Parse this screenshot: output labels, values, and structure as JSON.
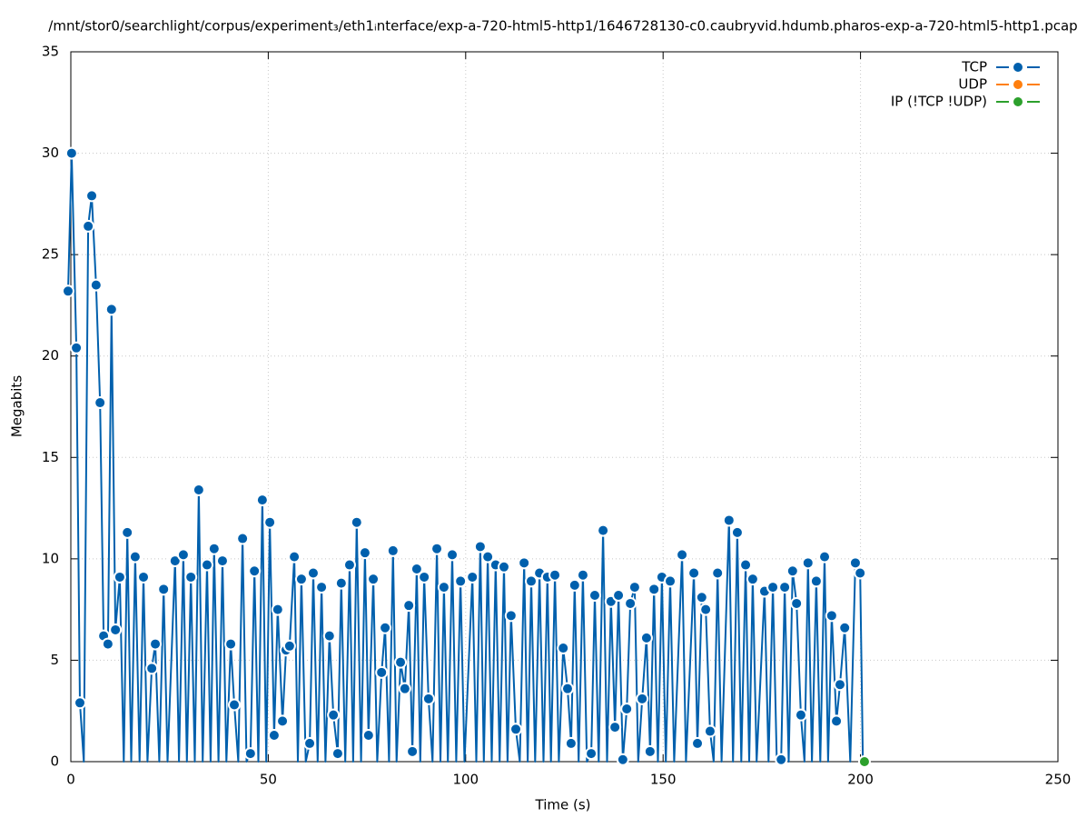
{
  "chart_data": {
    "type": "line",
    "title": "/mnt/stor0/searchlight/corpus/experiment₃/eth1ᵢnterface/exp-a-720-html5-http1/1646728130-c0.caubryvid.hdumb.pharos-exp-a-720-html5-http1.pcap",
    "x_label": "Time (s)",
    "y_label": "Megabits",
    "xlim": [
      0,
      250
    ],
    "xticks": [
      0,
      50,
      100,
      150,
      200,
      250
    ],
    "ylim": [
      0,
      35
    ],
    "yticks": [
      0,
      5,
      10,
      15,
      20,
      25,
      30,
      35
    ],
    "grid": true,
    "legend": "top-right",
    "series": [
      {
        "name": "TCP",
        "color": "#0060ad",
        "x": [
          -0.7,
          0.2,
          1.4,
          2.3,
          3.3,
          4.4,
          5.3,
          6.4,
          7.4,
          8.3,
          9.4,
          10.3,
          11.3,
          12.4,
          13.4,
          14.3,
          15.3,
          16.3,
          17.4,
          18.4,
          19.4,
          20.5,
          21.4,
          22.4,
          23.5,
          24.5,
          26.4,
          27.4,
          28.5,
          29.4,
          30.4,
          31.4,
          32.4,
          33.4,
          34.5,
          35.4,
          36.3,
          37.4,
          38.4,
          39.4,
          40.5,
          41.4,
          42.4,
          43.5,
          44.5,
          45.5,
          46.5,
          47.5,
          48.5,
          49.5,
          50.4,
          51.5,
          52.4,
          53.6,
          54.5,
          55.4,
          56.6,
          57.5,
          58.4,
          59.5,
          60.5,
          61.4,
          62.5,
          63.5,
          64.5,
          65.5,
          66.5,
          67.6,
          68.5,
          69.5,
          70.6,
          71.5,
          72.4,
          73.5,
          74.5,
          75.4,
          76.6,
          77.6,
          78.7,
          79.6,
          80.6,
          81.6,
          82.5,
          83.5,
          84.6,
          85.6,
          86.5,
          87.6,
          88.5,
          89.5,
          90.6,
          91.6,
          92.7,
          93.6,
          94.5,
          95.5,
          96.6,
          97.6,
          98.7,
          99.7,
          101.7,
          102.7,
          103.7,
          104.6,
          105.6,
          106.6,
          107.6,
          108.6,
          109.7,
          110.6,
          111.5,
          112.7,
          113.7,
          114.8,
          115.7,
          116.6,
          117.6,
          118.7,
          119.7,
          120.7,
          121.6,
          122.6,
          123.6,
          124.7,
          125.8,
          126.7,
          127.6,
          128.6,
          129.7,
          130.7,
          131.8,
          132.7,
          133.7,
          134.8,
          135.8,
          136.8,
          137.8,
          138.7,
          139.8,
          140.8,
          141.7,
          142.8,
          143.7,
          144.7,
          145.8,
          146.7,
          147.7,
          148.7,
          149.7,
          150.7,
          151.8,
          152.8,
          154.8,
          155.8,
          157.8,
          158.7,
          159.8,
          160.8,
          161.9,
          162.8,
          163.8,
          164.8,
          166.7,
          167.7,
          168.8,
          169.8,
          170.9,
          171.8,
          172.7,
          173.7,
          175.7,
          176.7,
          177.8,
          178.8,
          179.9,
          180.8,
          181.8,
          182.8,
          183.8,
          184.9,
          185.8,
          186.7,
          187.7,
          188.8,
          189.8,
          190.9,
          191.8,
          192.7,
          193.9,
          194.8,
          196.0,
          197.4,
          198.7,
          199.9,
          200.6
        ],
        "values": [
          23.2,
          30.0,
          20.4,
          2.9,
          0,
          26.4,
          27.9,
          23.5,
          17.7,
          6.2,
          5.8,
          22.3,
          6.5,
          9.1,
          0,
          11.3,
          0,
          10.1,
          0,
          9.1,
          0,
          4.6,
          5.8,
          0,
          8.5,
          0,
          9.9,
          0,
          10.2,
          0,
          9.1,
          0,
          13.4,
          0,
          9.7,
          0,
          10.5,
          0,
          9.9,
          0,
          5.8,
          2.8,
          0,
          11.0,
          0,
          0.4,
          9.4,
          0,
          12.9,
          0,
          11.8,
          1.3,
          7.5,
          2.0,
          5.5,
          5.7,
          10.1,
          0,
          9.0,
          0,
          0.9,
          9.3,
          0,
          8.6,
          0,
          6.2,
          2.3,
          0.4,
          8.8,
          0,
          9.7,
          0,
          11.8,
          0,
          10.3,
          1.3,
          9.0,
          0,
          4.4,
          6.6,
          0,
          10.4,
          0,
          4.9,
          3.6,
          7.7,
          0.5,
          9.5,
          0,
          9.1,
          3.1,
          0,
          10.5,
          0,
          8.6,
          0,
          10.2,
          0,
          8.9,
          0,
          9.1,
          0,
          10.6,
          0,
          10.1,
          0,
          9.7,
          0,
          9.6,
          0,
          7.2,
          1.6,
          0,
          9.8,
          0,
          8.9,
          0,
          9.3,
          0,
          9.1,
          0,
          9.2,
          0,
          5.6,
          3.6,
          0.9,
          8.7,
          0,
          9.2,
          0,
          0.4,
          8.2,
          0,
          11.4,
          0,
          7.9,
          1.7,
          8.2,
          0.1,
          2.6,
          7.8,
          8.6,
          0,
          3.1,
          6.1,
          0.5,
          8.5,
          0,
          9.1,
          0,
          8.9,
          0,
          10.2,
          0,
          9.3,
          0.9,
          8.1,
          7.5,
          1.5,
          0,
          9.3,
          0,
          11.9,
          0,
          11.3,
          0,
          9.7,
          0,
          9.0,
          0,
          8.4,
          0,
          8.6,
          0,
          0.1,
          8.6,
          0,
          9.4,
          7.8,
          2.3,
          0,
          9.8,
          0,
          8.9,
          0,
          10.1,
          0,
          7.2,
          2.0,
          3.8,
          6.6,
          0,
          9.8,
          9.3,
          0
        ]
      },
      {
        "name": "UDP",
        "color": "#ff7f0e",
        "x": [],
        "values": []
      },
      {
        "name": "IP (!TCP  !UDP)",
        "color": "#2ca02c",
        "x": [
          201
        ],
        "values": [
          0
        ]
      }
    ]
  }
}
